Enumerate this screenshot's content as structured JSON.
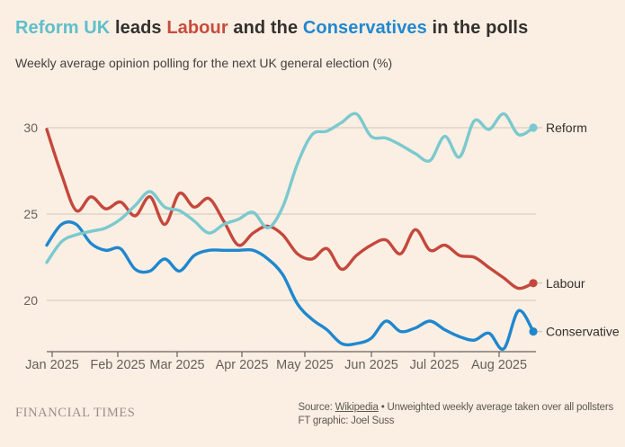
{
  "colors": {
    "background": "#FBEFE3",
    "reform": "#7BC9CE",
    "labour": "#C5473C",
    "conservative": "#1F87CE",
    "title_reform": "#5FBEC9",
    "title_labour": "#C84B3C",
    "title_conservative": "#2188D0",
    "text_dark": "#33302E",
    "text_muted": "#66605B",
    "gridline": "#CFC6BA",
    "axis": "#66605B",
    "logo": "#9A9086"
  },
  "header": {
    "title_segments": [
      {
        "text": "Reform UK",
        "color_key": "title_reform"
      },
      {
        "text": " leads ",
        "color_key": "text_dark"
      },
      {
        "text": "Labour",
        "color_key": "title_labour"
      },
      {
        "text": " and the ",
        "color_key": "text_dark"
      },
      {
        "text": "Conservatives",
        "color_key": "title_conservative"
      },
      {
        "text": " in the polls",
        "color_key": "text_dark"
      }
    ],
    "subtitle": "Weekly average opinion polling for the next UK general election (%)"
  },
  "chart_data": {
    "type": "line",
    "title": "Reform UK leads Labour and the Conservatives in the polls",
    "subtitle": "Weekly average opinion polling for the next UK general election (%)",
    "unit": "%",
    "grid": "horizontal",
    "legend_position": "end-of-line labels",
    "x_axis": {
      "tick_labels": [
        "Jan 2025",
        "Feb 2025",
        "Mar 2025",
        "Apr 2025",
        "May 2025",
        "Jun 2025",
        "Jul 2025",
        "Aug 2025"
      ],
      "note": "weekly data points, late Dec 2024 to mid Aug 2025"
    },
    "y_axis": {
      "ticks": [
        20,
        25,
        30
      ],
      "range": [
        17,
        31.5
      ]
    },
    "series": [
      {
        "name": "Labour",
        "end_label": "Labour",
        "color_key": "labour",
        "end_value": 21.0,
        "values": [
          29.9,
          27.3,
          25.2,
          26.0,
          25.3,
          25.7,
          24.9,
          26.0,
          24.4,
          26.2,
          25.4,
          25.9,
          24.6,
          23.2,
          23.9,
          24.3,
          23.8,
          22.7,
          22.4,
          23.0,
          21.8,
          22.6,
          23.2,
          23.5,
          22.7,
          24.1,
          22.9,
          23.2,
          22.6,
          22.5,
          21.9,
          21.3,
          20.7,
          21.0
        ]
      },
      {
        "name": "Conservative",
        "end_label": "Conservative",
        "color_key": "conservative",
        "end_value": 18.2,
        "values": [
          23.2,
          24.4,
          24.4,
          23.3,
          22.9,
          23.0,
          21.8,
          21.7,
          22.4,
          21.7,
          22.6,
          22.9,
          22.9,
          22.9,
          22.9,
          22.4,
          21.5,
          19.8,
          18.9,
          18.3,
          17.5,
          17.5,
          17.8,
          18.8,
          18.2,
          18.4,
          18.8,
          18.3,
          17.9,
          17.7,
          18.1,
          17.2,
          19.4,
          18.2
        ]
      },
      {
        "name": "Reform",
        "end_label": "Reform",
        "color_key": "reform",
        "end_value": 30.0,
        "values": [
          22.2,
          23.4,
          23.8,
          24.0,
          24.2,
          24.7,
          25.5,
          26.3,
          25.4,
          25.2,
          24.6,
          23.9,
          24.4,
          24.7,
          25.1,
          24.2,
          25.4,
          27.9,
          29.6,
          29.8,
          30.3,
          30.8,
          29.5,
          29.4,
          29.0,
          28.5,
          28.1,
          29.5,
          28.3,
          30.4,
          29.9,
          30.8,
          29.6,
          30.0
        ]
      }
    ]
  },
  "footer": {
    "logo": "FINANCIAL TIMES",
    "source_prefix": "Source: ",
    "source_link": "Wikipedia",
    "source_suffix": " • Unweighted weekly average taken over all pollsters",
    "credit": "FT graphic: Joel Suss"
  }
}
